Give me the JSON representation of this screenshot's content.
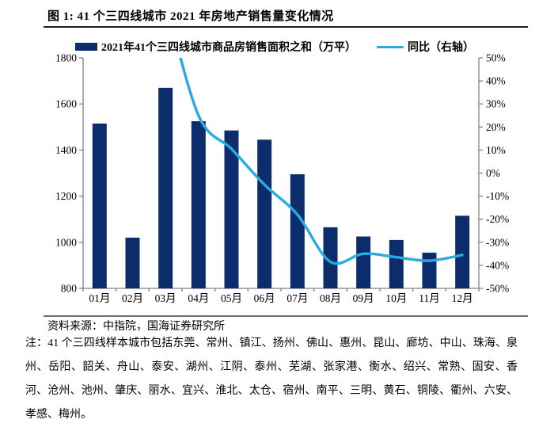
{
  "figure": {
    "title": "图 1:  41 个三四线城市 2021 年房地产销售量变化情况"
  },
  "chart_data": {
    "type": "bar+line",
    "title": "",
    "categories": [
      "01月",
      "02月",
      "03月",
      "04月",
      "05月",
      "06月",
      "07月",
      "08月",
      "09月",
      "10月",
      "11月",
      "12月"
    ],
    "series": [
      {
        "name": "2021年41个三四线城市商品房销售面积之和（万平）",
        "type": "bar",
        "axis": "left",
        "color": "#0B2D6B",
        "values": [
          1515,
          1020,
          1670,
          1525,
          1485,
          1445,
          1295,
          1065,
          1025,
          1010,
          955,
          1115
        ]
      },
      {
        "name": "同比（右轴）",
        "type": "line",
        "axis": "right",
        "color": "#29ABE2",
        "values": [
          null,
          null,
          75,
          25,
          10.5,
          -5,
          -18,
          -38.5,
          -35,
          -36.5,
          -38,
          -35.5
        ],
        "clipped_above_axis": true,
        "clip_note": "03月 value exceeds the +50% axis maximum; the line is clipped at the top of the plot"
      }
    ],
    "left_axis": {
      "min": 800,
      "max": 1800,
      "tick_step": 200,
      "tick_labels_top_to_bottom": [
        "1800",
        "1600",
        "1400",
        "1200",
        "1000",
        "800"
      ]
    },
    "right_axis": {
      "min": -50,
      "max": 50,
      "tick_step": 10,
      "tick_labels_top_to_bottom": [
        "50%",
        "40%",
        "30%",
        "20%",
        "10%",
        "0%",
        "-10%",
        "-20%",
        "-30%",
        "-40%",
        "-50%"
      ]
    },
    "grid": false,
    "legend_position": "top",
    "xlabel": "",
    "ylabel": ""
  },
  "footer": {
    "source": "资料来源：中指院，国海证券研究所",
    "note": "注：41 个三四线样本城市包括东莞、常州、镇江、扬州、佛山、惠州、昆山、廊坊、中山、珠海、泉州、岳阳、韶关、舟山、泰安、湖州、江阴、泰州、芜湖、张家港、衡水、绍兴、常熟、固安、香河、沧州、池州、肇庆、丽水、宜兴、淮北、太仓、宿州、南平、三明、黄石、铜陵、衢州、六安、孝感、梅州。"
  },
  "colors": {
    "bar": "#0B2D6B",
    "line": "#29ABE2",
    "axis": "#808080",
    "text": "#000000",
    "rule_title": "#1f1f1f",
    "rule_bottom": "#6e6e6e"
  }
}
